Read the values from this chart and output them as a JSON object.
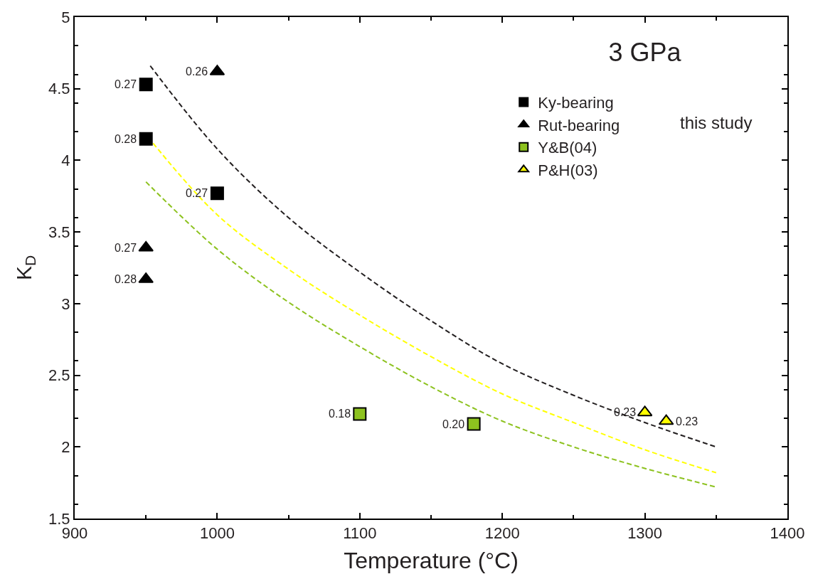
{
  "chart_data": {
    "type": "scatter",
    "title": "3 GPa",
    "xlabel": "Temperature (°C)",
    "ylabel": "K$_{D}$",
    "xlim": [
      900,
      1400
    ],
    "xticks": [
      900,
      1000,
      1100,
      1200,
      1300,
      1400
    ],
    "ylim": [
      1.5,
      5
    ],
    "yticks": [
      1.5,
      2,
      2.5,
      3,
      3.5,
      4,
      4.5,
      5
    ],
    "legend": "top right",
    "annotations": [
      "this study",
      {
        "text": "0.27",
        "x": 950,
        "y": 4.53
      },
      {
        "text": "0.28",
        "x": 950,
        "y": 4.15
      },
      {
        "text": "0.27",
        "x": 1000,
        "y": 3.77
      },
      {
        "text": "0.26",
        "x": 1000,
        "y": 4.62
      },
      {
        "text": "0.27",
        "x": 950,
        "y": 3.39
      },
      {
        "text": "0.28",
        "x": 950,
        "y": 3.17
      },
      {
        "text": "0.18",
        "x": 1100,
        "y": 2.23
      },
      {
        "text": "0.20",
        "x": 1180,
        "y": 2.16
      },
      {
        "text": "0.23",
        "x": 1300,
        "y": 2.24
      },
      {
        "text": "0.23",
        "x": 1315,
        "y": 2.18
      }
    ],
    "series": [
      {
        "type": "line",
        "color": "#231f20",
        "line_style": "dashed",
        "marker": "none",
        "x": [
          953,
          1000,
          1050,
          1100,
          1150,
          1200,
          1250,
          1300,
          1350
        ],
        "values": [
          4.66,
          4.08,
          3.6,
          3.22,
          2.88,
          2.58,
          2.36,
          2.17,
          2.0
        ]
      },
      {
        "type": "line",
        "color": "#ffff00",
        "line_style": "dashed",
        "marker": "none",
        "x": [
          955,
          1000,
          1050,
          1100,
          1150,
          1200,
          1250,
          1300,
          1350
        ],
        "values": [
          4.12,
          3.62,
          3.24,
          2.92,
          2.63,
          2.37,
          2.17,
          1.98,
          1.82
        ]
      },
      {
        "type": "line",
        "color": "#8dc21f",
        "line_style": "dashed",
        "marker": "none",
        "x": [
          950,
          1000,
          1050,
          1100,
          1150,
          1200,
          1250,
          1300,
          1350
        ],
        "values": [
          3.85,
          3.38,
          3.01,
          2.7,
          2.42,
          2.18,
          2.0,
          1.85,
          1.72
        ]
      },
      {
        "name": "Ky-bearing",
        "color": "#000000",
        "marker": "square",
        "x": [
          950,
          950,
          1000
        ],
        "values": [
          4.53,
          4.15,
          3.77
        ]
      },
      {
        "name": "Rut-bearing",
        "color": "#000000",
        "marker": "triangle",
        "x": [
          1000,
          950,
          950
        ],
        "values": [
          4.62,
          3.39,
          3.17
        ]
      },
      {
        "name": "Y&B(04)",
        "color": "#8dc21f",
        "marker": "square",
        "x": [
          1100,
          1180
        ],
        "values": [
          2.23,
          2.16
        ]
      },
      {
        "name": "P&H(03)",
        "color": "#ffff00",
        "marker": "triangle",
        "x": [
          1300,
          1315
        ],
        "values": [
          2.24,
          2.18
        ]
      }
    ]
  }
}
